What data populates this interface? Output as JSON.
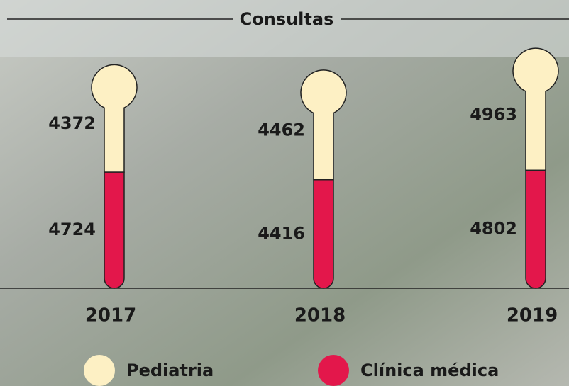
{
  "chart_data": {
    "type": "thermometer",
    "title": "Consultas",
    "categories": [
      "2017",
      "2018",
      "2019"
    ],
    "series": [
      {
        "name": "Pediatria",
        "color": "#fdf0c4",
        "values": [
          4372,
          4462,
          4963
        ]
      },
      {
        "name": "Clínica médica",
        "color": "#e3174b",
        "values": [
          4724,
          4416,
          4802
        ]
      }
    ],
    "ylim": [
      0,
      10000
    ]
  }
}
